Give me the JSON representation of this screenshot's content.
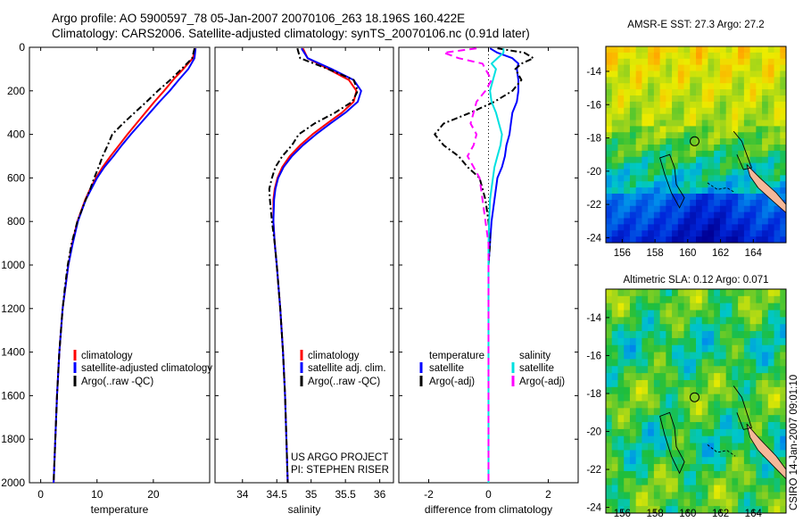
{
  "header": {
    "line1": "Argo profile: AO 5900597_78 05-Jan-2007 20070106_263 18.196S 160.422E",
    "line2": "Climatology: CARS2006. Satellite-adjusted climatology: synTS_20070106.nc (0.91d later)"
  },
  "colors": {
    "climatology": "#ff0000",
    "satellite": "#0000ff",
    "argo": "#000000",
    "cyan": "#00e0e0",
    "magenta": "#ff00ff"
  },
  "chart_data": [
    {
      "type": "line",
      "id": "temperature",
      "xlabel": "temperature",
      "xlim": [
        -2,
        30
      ],
      "xticks": [
        0,
        10,
        20
      ],
      "ylim": [
        2000,
        0
      ],
      "yticks": [
        0,
        200,
        400,
        600,
        800,
        1000,
        1200,
        1400,
        1600,
        1800,
        2000
      ],
      "depth": [
        5,
        50,
        100,
        150,
        200,
        250,
        300,
        350,
        400,
        450,
        500,
        550,
        600,
        650,
        700,
        800,
        900,
        1000,
        1100,
        1200,
        1400,
        1600,
        1800,
        2000
      ],
      "series": [
        {
          "name": "climatology",
          "color": "#ff0000",
          "dash": "",
          "values": [
            27.5,
            27.0,
            25.3,
            23.5,
            21.9,
            20.2,
            18.6,
            17.0,
            15.4,
            13.9,
            12.4,
            11.0,
            9.8,
            8.8,
            7.9,
            6.5,
            5.6,
            4.9,
            4.4,
            3.9,
            3.3,
            2.9,
            2.6,
            2.3
          ]
        },
        {
          "name": "satellite-adjusted climatology",
          "color": "#0000ff",
          "dash": "",
          "values": [
            27.5,
            27.3,
            26.2,
            24.5,
            22.9,
            21.1,
            19.4,
            17.7,
            16.0,
            14.4,
            12.9,
            11.3,
            10.0,
            9.0,
            8.0,
            6.6,
            5.7,
            4.9,
            4.4,
            3.9,
            3.3,
            2.9,
            2.6,
            2.3
          ]
        },
        {
          "name": "Argo(..raw -QC)",
          "color": "#000000",
          "dash": "7,3,2,3",
          "values": [
            27.3,
            26.9,
            25.0,
            23.0,
            20.8,
            18.8,
            16.7,
            14.6,
            12.7,
            11.9,
            11.0,
            10.3,
            9.5,
            8.8,
            8.0,
            6.5,
            5.5,
            4.8,
            4.3,
            3.9,
            3.3,
            2.9,
            2.6,
            2.3
          ]
        }
      ],
      "legend": [
        "climatology",
        "satellite-adjusted climatology",
        "Argo(..raw -QC)"
      ]
    },
    {
      "type": "line",
      "id": "salinity",
      "xlabel": "salinity",
      "xlim": [
        33.6,
        36.2
      ],
      "xticks": [
        34,
        34.5,
        35,
        35.5,
        36
      ],
      "ylim": [
        2000,
        0
      ],
      "depth": [
        5,
        50,
        100,
        150,
        200,
        250,
        300,
        350,
        400,
        450,
        500,
        550,
        600,
        650,
        700,
        800,
        900,
        1000,
        1200,
        1400,
        1600,
        1800,
        2000
      ],
      "series": [
        {
          "name": "climatology",
          "color": "#ff0000",
          "dash": "",
          "values": [
            34.88,
            34.95,
            35.25,
            35.55,
            35.66,
            35.62,
            35.45,
            35.23,
            35.02,
            34.84,
            34.69,
            34.58,
            34.51,
            34.47,
            34.45,
            34.45,
            34.47,
            34.5,
            34.55,
            34.59,
            34.62,
            34.64,
            34.66
          ]
        },
        {
          "name": "satellite adj. clim.",
          "color": "#0000ff",
          "dash": "",
          "values": [
            34.86,
            34.95,
            35.3,
            35.62,
            35.73,
            35.68,
            35.5,
            35.28,
            35.07,
            34.88,
            34.72,
            34.6,
            34.52,
            34.48,
            34.46,
            34.45,
            34.47,
            34.5,
            34.55,
            34.59,
            34.62,
            34.64,
            34.66
          ]
        },
        {
          "name": "Argo(..raw -QC)",
          "color": "#000000",
          "dash": "7,3,2,3",
          "values": [
            34.8,
            34.84,
            35.25,
            35.62,
            35.68,
            35.6,
            35.35,
            35.05,
            34.82,
            34.72,
            34.58,
            34.48,
            34.43,
            34.39,
            34.4,
            34.43,
            34.47,
            34.5,
            34.55,
            34.59,
            34.62,
            34.64,
            34.66
          ]
        }
      ],
      "legend": [
        "climatology",
        "satellite adj. clim.",
        "Argo(..raw -QC)"
      ],
      "credit": [
        "US ARGO PROJECT",
        "PI: STEPHEN RISER"
      ]
    },
    {
      "type": "line",
      "id": "difference",
      "xlabel": "difference from climatology",
      "xlim": [
        -3,
        3
      ],
      "xticks": [
        -2,
        0,
        2
      ],
      "ylim": [
        2000,
        0
      ],
      "depth": [
        5,
        25,
        50,
        75,
        100,
        150,
        200,
        250,
        300,
        350,
        400,
        450,
        500,
        550,
        600,
        700,
        800,
        900,
        1000,
        1200,
        1500,
        2000
      ],
      "series": [
        {
          "name": "temperature satellite",
          "color": "#0000ff",
          "dash": "",
          "values": [
            0.05,
            0.3,
            0.8,
            1.0,
            0.95,
            1.0,
            1.0,
            0.95,
            0.8,
            0.75,
            0.7,
            0.6,
            0.55,
            0.45,
            0.3,
            0.2,
            0.1,
            0.05,
            0.0,
            0.0,
            0.0,
            0.0
          ]
        },
        {
          "name": "temperature Argo(-adj)",
          "color": "#000000",
          "dash": "7,3,2,3",
          "values": [
            0.3,
            1.2,
            1.5,
            1.1,
            0.9,
            1.1,
            0.8,
            0.2,
            -0.6,
            -1.5,
            -1.8,
            -1.5,
            -1.0,
            -0.7,
            -0.3,
            -0.1,
            0.0,
            0.05,
            0.0,
            0.0,
            0.0,
            0.0
          ]
        },
        {
          "name": "salinity satellite",
          "color": "#00e0e0",
          "dash": "",
          "values": [
            0.5,
            0.5,
            0.3,
            0.1,
            0.25,
            0.15,
            0.05,
            0.1,
            0.25,
            0.35,
            0.45,
            0.4,
            0.3,
            0.2,
            0.15,
            0.05,
            0.02,
            0.0,
            0.0,
            0.0,
            0.0,
            0.0
          ]
        },
        {
          "name": "salinity Argo(-adj)",
          "color": "#ff00ff",
          "dash": "8,5",
          "values": [
            -0.4,
            -1.5,
            -1.0,
            -0.2,
            -0.1,
            0.1,
            -0.1,
            -0.4,
            -0.5,
            -0.6,
            -0.4,
            -0.5,
            -0.7,
            -0.5,
            -0.3,
            -0.2,
            -0.1,
            0.0,
            0.0,
            0.0,
            0.0,
            0.0
          ]
        }
      ],
      "legend_left_title": "temperature",
      "legend_right_title": "salinity",
      "legend_left": [
        "satellite",
        "Argo(-adj)"
      ],
      "legend_right": [
        "satellite",
        "Argo(-adj)"
      ]
    },
    {
      "type": "heatmap",
      "id": "sst-map",
      "title": "AMSR-E SST: 27.3 Argo: 27.2",
      "xticks": [
        156,
        158,
        160,
        162,
        164
      ],
      "yticks": [
        -14,
        -16,
        -18,
        -20,
        -22,
        -24
      ],
      "xlim": [
        155,
        166
      ],
      "ylim": [
        -24.3,
        -12.5
      ],
      "float_position": [
        160.42,
        -18.2
      ]
    },
    {
      "type": "heatmap",
      "id": "sla-map",
      "title": "Altimetric SLA: 0.12 Argo: 0.071",
      "xticks": [
        156,
        158,
        160,
        162,
        164
      ],
      "yticks": [
        -14,
        -16,
        -18,
        -20,
        -22,
        -24
      ],
      "xlim": [
        155,
        166
      ],
      "ylim": [
        -24.3,
        -12.5
      ],
      "float_position": [
        160.42,
        -18.2
      ]
    }
  ],
  "footer": {
    "stamp": "CSIRO 14-Jan-2007 09:01:10"
  }
}
